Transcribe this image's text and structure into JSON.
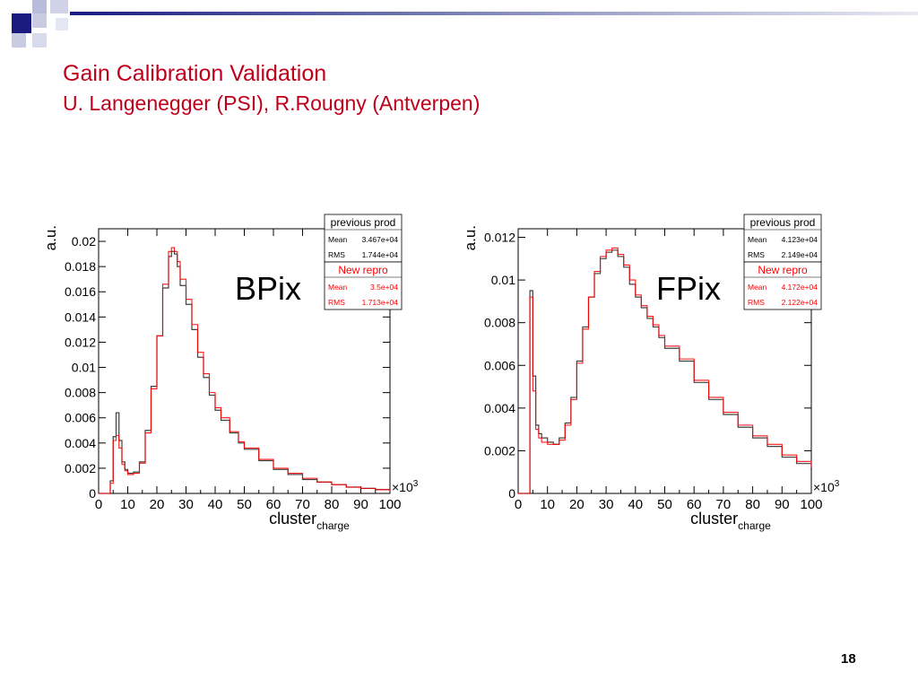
{
  "slide": {
    "title": "Gain Calibration Validation",
    "subtitle": "U. Langenegger (PSI), R.Rougny (Antverpen)",
    "page_number": "18",
    "title_color": "#c0001a"
  },
  "chart_data": [
    {
      "type": "line",
      "name": "BPix",
      "xlabel": "cluster",
      "xlabel_sub": "charge",
      "ylabel": "a.u.",
      "x_multiplier": "×10",
      "x_multiplier_exp": "3",
      "xlim": [
        0,
        100
      ],
      "ylim": [
        0,
        0.021
      ],
      "x_ticks": [
        0,
        10,
        20,
        30,
        40,
        50,
        60,
        70,
        80,
        90,
        100
      ],
      "y_ticks": [
        "0",
        "0.002",
        "0.004",
        "0.006",
        "0.008",
        "0.01",
        "0.012",
        "0.014",
        "0.016",
        "0.018",
        "0.02"
      ],
      "y_tick_values": [
        0,
        0.002,
        0.004,
        0.006,
        0.008,
        0.01,
        0.012,
        0.014,
        0.016,
        0.018,
        0.02
      ],
      "x": [
        0,
        2,
        3,
        4,
        5,
        6,
        7,
        8,
        9,
        10,
        11,
        12,
        14,
        16,
        18,
        20,
        22,
        24,
        25,
        26,
        27,
        28,
        30,
        32,
        34,
        36,
        38,
        40,
        42,
        45,
        48,
        50,
        55,
        60,
        65,
        70,
        75,
        80,
        85,
        90,
        95,
        100
      ],
      "series": [
        {
          "name": "previous prod",
          "color": "#000000",
          "values": [
            0,
            0,
            0,
            0.001,
            0.0045,
            0.0064,
            0.0042,
            0.0025,
            0.0019,
            0.0016,
            0.0016,
            0.0017,
            0.0025,
            0.005,
            0.0085,
            0.0125,
            0.0163,
            0.0188,
            0.0192,
            0.019,
            0.018,
            0.0165,
            0.015,
            0.013,
            0.0108,
            0.0092,
            0.0078,
            0.0066,
            0.0058,
            0.0048,
            0.004,
            0.0035,
            0.0026,
            0.0019,
            0.0015,
            0.0011,
            0.0009,
            0.0007,
            0.0005,
            0.0004,
            0.0003,
            0.0002
          ],
          "mean": "3.467e+04",
          "rms": "1.744e+04"
        },
        {
          "name": "New repro",
          "color": "#ff0000",
          "values": [
            0,
            0,
            0,
            0.0008,
            0.0042,
            0.0046,
            0.0036,
            0.0023,
            0.0018,
            0.0015,
            0.0015,
            0.0016,
            0.0024,
            0.0048,
            0.0083,
            0.0125,
            0.0166,
            0.0192,
            0.0195,
            0.0192,
            0.0184,
            0.017,
            0.0154,
            0.0134,
            0.0112,
            0.0095,
            0.008,
            0.0068,
            0.006,
            0.0049,
            0.0041,
            0.0036,
            0.0027,
            0.002,
            0.0016,
            0.0012,
            0.0009,
            0.0007,
            0.0005,
            0.0004,
            0.0003,
            0.0002
          ],
          "mean": "3.5e+04",
          "rms": "1.713e+04"
        }
      ],
      "label_text": "BPix",
      "stat_labels": {
        "mean": "Mean",
        "rms": "RMS"
      }
    },
    {
      "type": "line",
      "name": "FPix",
      "xlabel": "cluster",
      "xlabel_sub": "charge",
      "ylabel": "a.u.",
      "x_multiplier": "×10",
      "x_multiplier_exp": "3",
      "xlim": [
        0,
        100
      ],
      "ylim": [
        0,
        0.0124
      ],
      "x_ticks": [
        0,
        10,
        20,
        30,
        40,
        50,
        60,
        70,
        80,
        90,
        100
      ],
      "y_ticks": [
        "0",
        "0.002",
        "0.004",
        "0.006",
        "0.008",
        "0.01",
        "0.012"
      ],
      "y_tick_values": [
        0,
        0.002,
        0.004,
        0.006,
        0.008,
        0.01,
        0.012
      ],
      "x": [
        0,
        2,
        3,
        4,
        5,
        6,
        7,
        8,
        10,
        12,
        14,
        16,
        18,
        20,
        22,
        24,
        26,
        28,
        30,
        32,
        34,
        36,
        38,
        40,
        42,
        44,
        46,
        48,
        50,
        55,
        60,
        65,
        70,
        75,
        80,
        85,
        90,
        95,
        100
      ],
      "series": [
        {
          "name": "previous prod",
          "color": "#000000",
          "values": [
            0,
            0,
            0,
            0.0095,
            0.0055,
            0.0032,
            0.0028,
            0.0026,
            0.0024,
            0.0023,
            0.0026,
            0.0033,
            0.0045,
            0.0062,
            0.0078,
            0.0092,
            0.0103,
            0.011,
            0.0113,
            0.0114,
            0.0111,
            0.0106,
            0.0098,
            0.0092,
            0.0087,
            0.0082,
            0.0078,
            0.0073,
            0.0068,
            0.0062,
            0.0052,
            0.0044,
            0.0037,
            0.0031,
            0.0026,
            0.0022,
            0.0017,
            0.0014,
            0.0011
          ],
          "mean": "4.123e+04",
          "rms": "2.149e+04"
        },
        {
          "name": "New repro",
          "color": "#ff0000",
          "values": [
            0,
            0,
            0,
            0.0092,
            0.0048,
            0.003,
            0.0026,
            0.0024,
            0.0023,
            0.0023,
            0.0025,
            0.0032,
            0.0044,
            0.0061,
            0.0077,
            0.0092,
            0.0104,
            0.0111,
            0.0114,
            0.0115,
            0.0112,
            0.0107,
            0.01,
            0.0093,
            0.0088,
            0.0083,
            0.0079,
            0.0074,
            0.0069,
            0.0063,
            0.0053,
            0.0045,
            0.0038,
            0.0032,
            0.0027,
            0.0023,
            0.0018,
            0.0015,
            0.0012
          ],
          "mean": "4.172e+04",
          "rms": "2.122e+04"
        }
      ],
      "label_text": "FPix",
      "stat_labels": {
        "mean": "Mean",
        "rms": "RMS"
      }
    }
  ]
}
